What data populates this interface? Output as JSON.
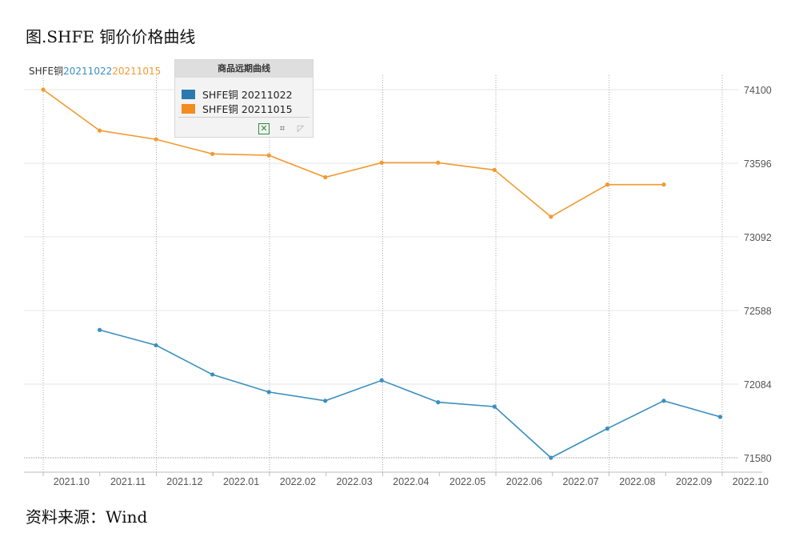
{
  "figure": {
    "title": "图.SHFE 铜价价格曲线",
    "source": "资料来源：Wind"
  },
  "chart_header": {
    "label": "SHFE铜",
    "date1": "20211022",
    "date2": "20211015"
  },
  "legend": {
    "title": "商品远期曲线",
    "items": [
      "SHFE铜 20211022",
      "SHFE铜 20211015"
    ],
    "tools": [
      "excel-export-icon",
      "crop-icon",
      "reset-zoom-icon"
    ]
  },
  "colors": {
    "series_20211022": "#3a8fbf",
    "series_20211015": "#f29a30",
    "legend_swatch_20211022": "#2a7ab0",
    "legend_swatch_20211015": "#f28c1e",
    "grid": "#e6e6e6",
    "axis_text": "#555555"
  },
  "chart_data": {
    "type": "line",
    "x": [
      "2021.10",
      "2021.11",
      "2021.11",
      "2021.12",
      "2021.12",
      "2022.01",
      "2022.02",
      "2022.02",
      "2022.03",
      "2022.04",
      "2022.04",
      "2022.05",
      "2022.06",
      "2022.06",
      "2022.07",
      "2022.08",
      "2022.08",
      "2022.09",
      "2022.09",
      "2022.10"
    ],
    "x_ticks": [
      "2021.10",
      "2021.11",
      "2021.12",
      "2022.01",
      "2022.02",
      "2022.03",
      "2022.04",
      "2022.05",
      "2022.06",
      "2022.07",
      "2022.08",
      "2022.09",
      "2022.10"
    ],
    "y_ticks": [
      74100,
      73596,
      73092,
      72588,
      72084,
      71580
    ],
    "ylim": [
      71580,
      74100
    ],
    "y_axis_position": "right",
    "grid": true,
    "legend_position": "top-left",
    "series": [
      {
        "name": "SHFE铜 20211022",
        "points": [
          {
            "x": "2021.11",
            "y": 72455
          },
          {
            "x": "2021.12",
            "y": 72350
          },
          {
            "x": "2021.12",
            "y": 72150
          },
          {
            "x": "2022.01",
            "y": 72030
          },
          {
            "x": "2022.02",
            "y": 71970
          },
          {
            "x": "2022.03",
            "y": 72110
          },
          {
            "x": "2022.04",
            "y": 71960
          },
          {
            "x": "2022.05",
            "y": 71930
          },
          {
            "x": "2022.06",
            "y": 71580
          },
          {
            "x": "2022.07",
            "y": 71780
          },
          {
            "x": "2022.08",
            "y": 71970
          },
          {
            "x": "2022.09",
            "y": 71860
          }
        ]
      },
      {
        "name": "SHFE铜 20211015",
        "points": [
          {
            "x": "2021.10",
            "y": 74100
          },
          {
            "x": "2021.11",
            "y": 73820
          },
          {
            "x": "2021.12",
            "y": 73760
          },
          {
            "x": "2021.12",
            "y": 73660
          },
          {
            "x": "2022.01",
            "y": 73650
          },
          {
            "x": "2022.02",
            "y": 73500
          },
          {
            "x": "2022.03",
            "y": 73600
          },
          {
            "x": "2022.04",
            "y": 73600
          },
          {
            "x": "2022.05",
            "y": 73550
          },
          {
            "x": "2022.06",
            "y": 73230
          },
          {
            "x": "2022.07",
            "y": 73450
          },
          {
            "x": "2022.08",
            "y": 73450
          }
        ]
      }
    ]
  }
}
